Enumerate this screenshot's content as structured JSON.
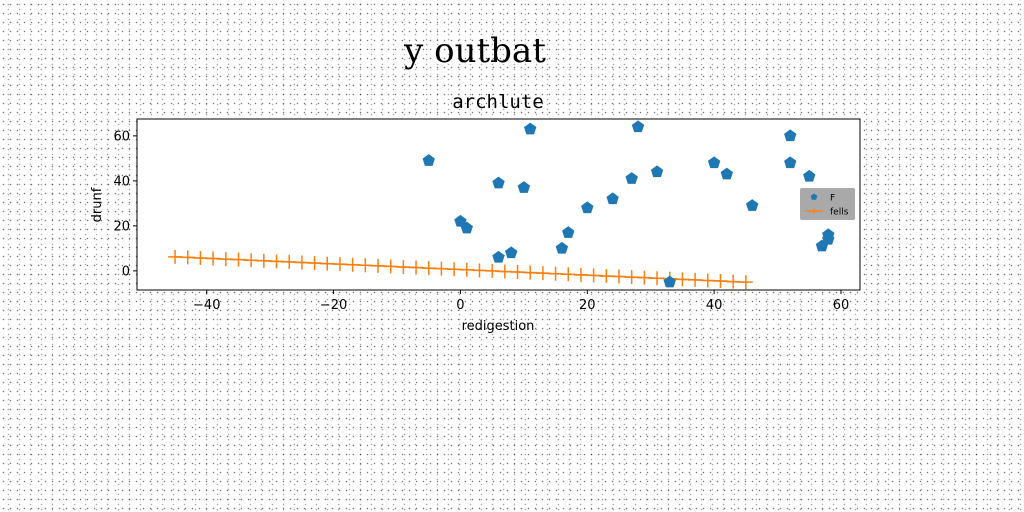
{
  "chart_data": {
    "type": "scatter",
    "suptitle": "y outbat",
    "title": "archlute",
    "xlabel": "redigestion",
    "ylabel": "drunf",
    "xlim": [
      -51,
      63
    ],
    "ylim": [
      -8.5,
      67.5
    ],
    "xticks": [
      -40,
      -20,
      0,
      20,
      40,
      60
    ],
    "yticks": [
      0,
      20,
      40,
      60
    ],
    "grid": false,
    "legend_position": "right",
    "series": [
      {
        "name": "F",
        "marker": "pentagon",
        "color": "#1f77b4",
        "points": [
          [
            -5,
            49
          ],
          [
            0,
            22
          ],
          [
            1,
            19
          ],
          [
            6,
            39
          ],
          [
            6,
            6
          ],
          [
            8,
            8
          ],
          [
            10,
            37
          ],
          [
            11,
            63
          ],
          [
            16,
            10
          ],
          [
            17,
            17
          ],
          [
            20,
            28
          ],
          [
            24,
            32
          ],
          [
            27,
            41
          ],
          [
            28,
            64
          ],
          [
            31,
            44
          ],
          [
            33,
            -5
          ],
          [
            40,
            48
          ],
          [
            42,
            43
          ],
          [
            46,
            29
          ],
          [
            52,
            60
          ],
          [
            52,
            48
          ],
          [
            55,
            42
          ],
          [
            57,
            11
          ],
          [
            58,
            14
          ],
          [
            58,
            16
          ]
        ]
      },
      {
        "name": "fells",
        "marker": "plus",
        "color": "#ff7f0e",
        "line": true,
        "points": [
          [
            -45,
            6.2
          ],
          [
            -43,
            6.0
          ],
          [
            -41,
            5.7
          ],
          [
            -39,
            5.5
          ],
          [
            -37,
            5.2
          ],
          [
            -35,
            5.0
          ],
          [
            -33,
            4.7
          ],
          [
            -31,
            4.5
          ],
          [
            -29,
            4.2
          ],
          [
            -27,
            4.0
          ],
          [
            -25,
            3.7
          ],
          [
            -23,
            3.5
          ],
          [
            -21,
            3.2
          ],
          [
            -19,
            3.0
          ],
          [
            -17,
            2.7
          ],
          [
            -15,
            2.5
          ],
          [
            -13,
            2.2
          ],
          [
            -11,
            2.0
          ],
          [
            -9,
            1.7
          ],
          [
            -7,
            1.5
          ],
          [
            -5,
            1.2
          ],
          [
            -3,
            1.0
          ],
          [
            -1,
            0.7
          ],
          [
            1,
            0.5
          ],
          [
            3,
            0.2
          ],
          [
            5,
            0.0
          ],
          [
            7,
            -0.3
          ],
          [
            9,
            -0.5
          ],
          [
            11,
            -0.8
          ],
          [
            13,
            -1.0
          ],
          [
            15,
            -1.3
          ],
          [
            17,
            -1.5
          ],
          [
            19,
            -1.8
          ],
          [
            21,
            -2.0
          ],
          [
            23,
            -2.3
          ],
          [
            25,
            -2.5
          ],
          [
            27,
            -2.8
          ],
          [
            29,
            -3.0
          ],
          [
            31,
            -3.3
          ],
          [
            33,
            -3.5
          ],
          [
            35,
            -3.8
          ],
          [
            37,
            -4.0
          ],
          [
            39,
            -4.3
          ],
          [
            41,
            -4.5
          ],
          [
            43,
            -4.8
          ],
          [
            45,
            -5.0
          ]
        ]
      }
    ]
  }
}
